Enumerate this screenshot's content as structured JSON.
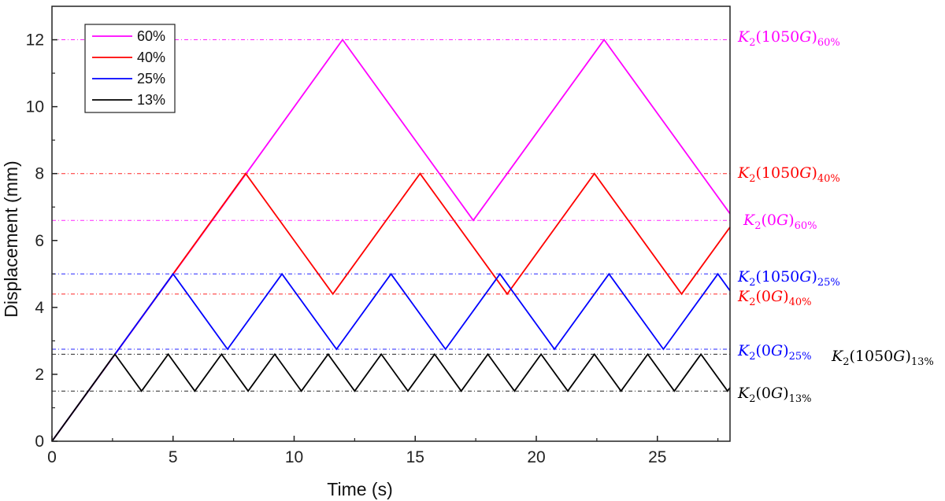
{
  "chart_data": {
    "type": "line",
    "title": "",
    "xlabel": "Time (s)",
    "ylabel": "Displacement (mm)",
    "xlim": [
      0,
      28
    ],
    "ylim": [
      0,
      13
    ],
    "xticks": [
      0,
      5,
      10,
      15,
      20,
      25
    ],
    "yticks": [
      0,
      2,
      4,
      6,
      8,
      10,
      12
    ],
    "legend_position": "top-left",
    "series": [
      {
        "name": "60%",
        "color": "#ff00ff",
        "points": [
          [
            0,
            0
          ],
          [
            8.02,
            8.0
          ],
          [
            12.0,
            12.0
          ],
          [
            17.4,
            6.6
          ],
          [
            22.8,
            12.0
          ],
          [
            28.0,
            6.8
          ]
        ]
      },
      {
        "name": "40%",
        "color": "#ff0000",
        "points": [
          [
            0,
            0
          ],
          [
            8.0,
            8.0
          ],
          [
            11.6,
            4.4
          ],
          [
            15.2,
            8.0
          ],
          [
            18.8,
            4.4
          ],
          [
            22.4,
            8.0
          ],
          [
            26.0,
            4.4
          ],
          [
            28.0,
            6.4
          ]
        ]
      },
      {
        "name": "25%",
        "color": "#0000ff",
        "points": [
          [
            0,
            0
          ],
          [
            5.0,
            5.0
          ],
          [
            7.25,
            2.75
          ],
          [
            9.5,
            5.0
          ],
          [
            11.75,
            2.75
          ],
          [
            14.0,
            5.0
          ],
          [
            16.25,
            2.75
          ],
          [
            18.5,
            5.0
          ],
          [
            20.75,
            2.75
          ],
          [
            23.0,
            5.0
          ],
          [
            25.25,
            2.75
          ],
          [
            27.5,
            5.0
          ],
          [
            28.0,
            4.5
          ]
        ]
      },
      {
        "name": "13%",
        "color": "#000000",
        "points": [
          [
            0,
            0
          ],
          [
            2.6,
            2.6
          ],
          [
            3.7,
            1.5
          ],
          [
            4.8,
            2.6
          ],
          [
            5.9,
            1.5
          ],
          [
            7.0,
            2.6
          ],
          [
            8.1,
            1.5
          ],
          [
            9.2,
            2.6
          ],
          [
            10.3,
            1.5
          ],
          [
            11.4,
            2.6
          ],
          [
            12.5,
            1.5
          ],
          [
            13.6,
            2.6
          ],
          [
            14.7,
            1.5
          ],
          [
            15.8,
            2.6
          ],
          [
            16.9,
            1.5
          ],
          [
            18.0,
            2.6
          ],
          [
            19.1,
            1.5
          ],
          [
            20.2,
            2.6
          ],
          [
            21.3,
            1.5
          ],
          [
            22.4,
            2.6
          ],
          [
            23.5,
            1.5
          ],
          [
            24.6,
            2.6
          ],
          [
            25.7,
            1.5
          ],
          [
            26.8,
            2.6
          ],
          [
            27.9,
            1.5
          ],
          [
            28.0,
            1.6
          ]
        ]
      }
    ],
    "reference_lines": [
      {
        "y": 12.0,
        "color": "#ff00ff",
        "base": "K",
        "sub1": "2",
        "open": "(",
        "field": "1050",
        "unit": "G",
        "close": ")",
        "sub2": "60%"
      },
      {
        "y": 8.0,
        "color": "#ff0000",
        "base": "K",
        "sub1": "2",
        "open": "(",
        "field": "1050",
        "unit": "G",
        "close": ")",
        "sub2": "40%"
      },
      {
        "y": 6.6,
        "color": "#ff00ff",
        "base": "K",
        "sub1": "2",
        "open": "(",
        "field": "0",
        "unit": "G",
        "close": ")",
        "sub2": "60%"
      },
      {
        "y": 5.0,
        "color": "#0000ff",
        "base": "K",
        "sub1": "2",
        "open": "(",
        "field": "1050",
        "unit": "G",
        "close": ")",
        "sub2": "25%"
      },
      {
        "y": 4.4,
        "color": "#ff0000",
        "base": "K",
        "sub1": "2",
        "open": "(",
        "field": "0",
        "unit": "G",
        "close": ")",
        "sub2": "40%"
      },
      {
        "y": 2.75,
        "color": "#0000ff",
        "base": "K",
        "sub1": "2",
        "open": "(",
        "field": "0",
        "unit": "G",
        "close": ")",
        "sub2": "25%"
      },
      {
        "y": 2.6,
        "color": "#000000",
        "base": "K",
        "sub1": "2",
        "open": "(",
        "field": "1050",
        "unit": "G",
        "close": ")",
        "sub2": "13%"
      },
      {
        "y": 1.5,
        "color": "#000000",
        "base": "K",
        "sub1": "2",
        "open": "(",
        "field": "0",
        "unit": "G",
        "close": ")",
        "sub2": "13%"
      }
    ]
  }
}
